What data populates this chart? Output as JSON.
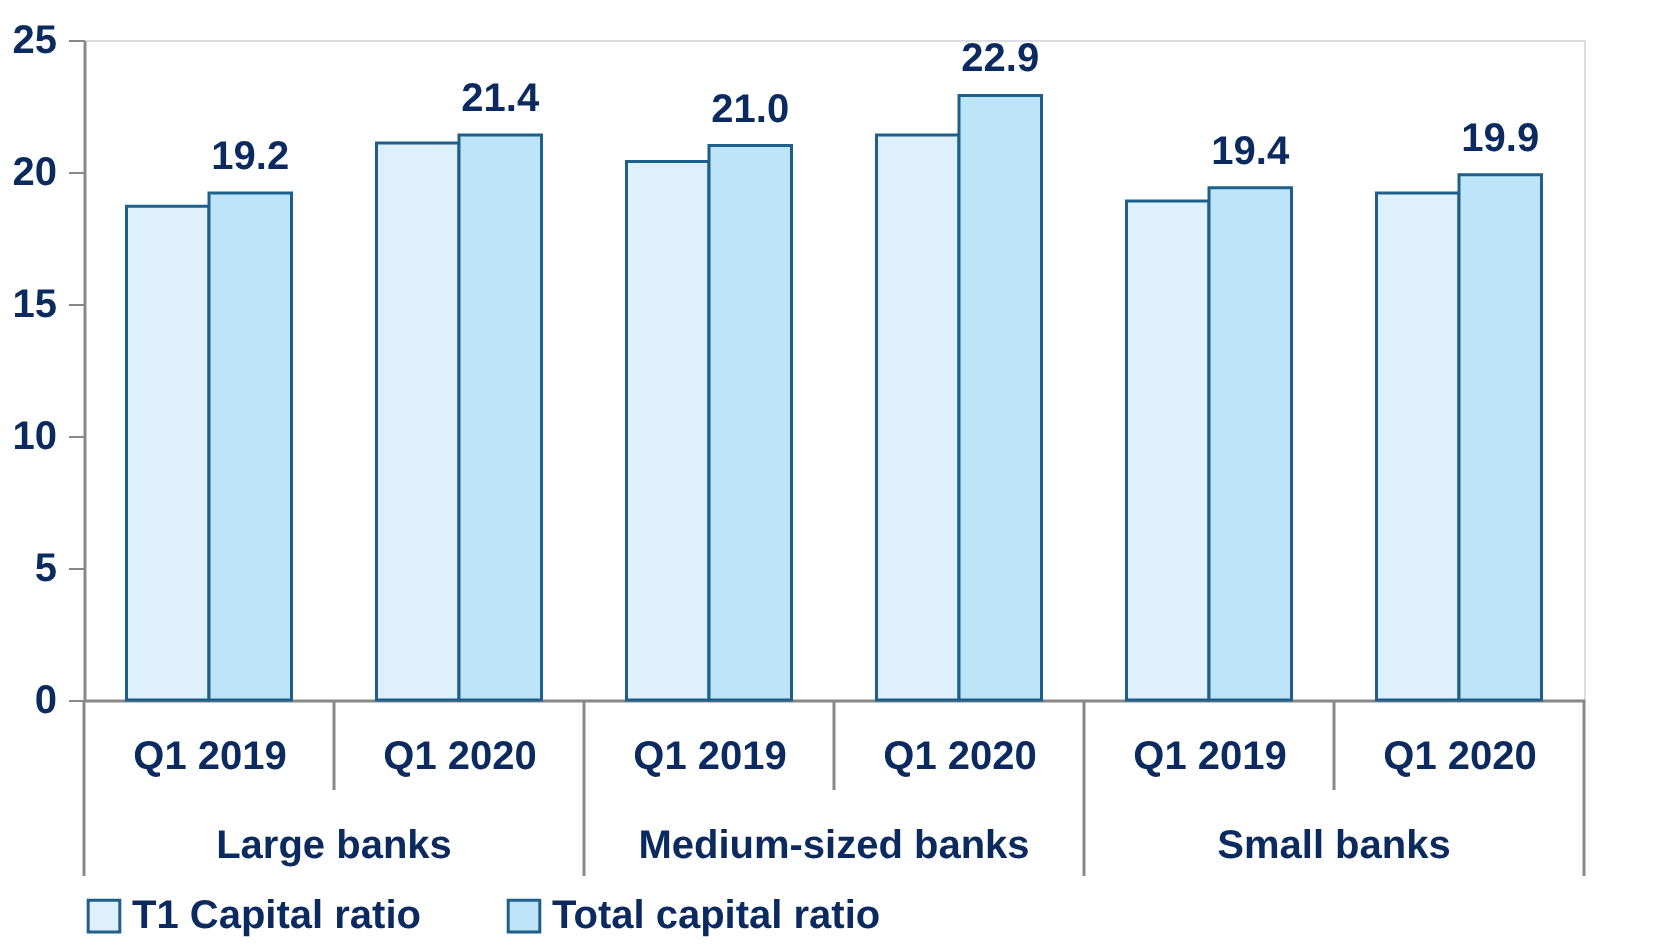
{
  "chart_data": {
    "type": "bar",
    "categories": [
      "Q1 2019",
      "Q1 2020",
      "Q1 2019",
      "Q1 2020",
      "Q1 2019",
      "Q1 2020"
    ],
    "series": [
      {
        "name": "T1 Capital ratio",
        "color": "#ddf0fc",
        "values": [
          18.7,
          21.1,
          20.4,
          21.4,
          18.9,
          19.2
        ]
      },
      {
        "name": "Total capital ratio",
        "color": "#bde4f8",
        "values": [
          19.2,
          21.4,
          21.0,
          22.9,
          19.4,
          19.9
        ],
        "value_labels": [
          "19.2",
          "21.4",
          "21.0",
          "22.9",
          "19.4",
          "19.9"
        ]
      }
    ],
    "annotations": [
      "Large banks",
      "Medium-sized banks",
      "Small banks"
    ],
    "ylim": [
      0,
      25
    ],
    "yticks": [
      0,
      5,
      10,
      15,
      20,
      25
    ],
    "grid": false,
    "legend": "bottom"
  }
}
